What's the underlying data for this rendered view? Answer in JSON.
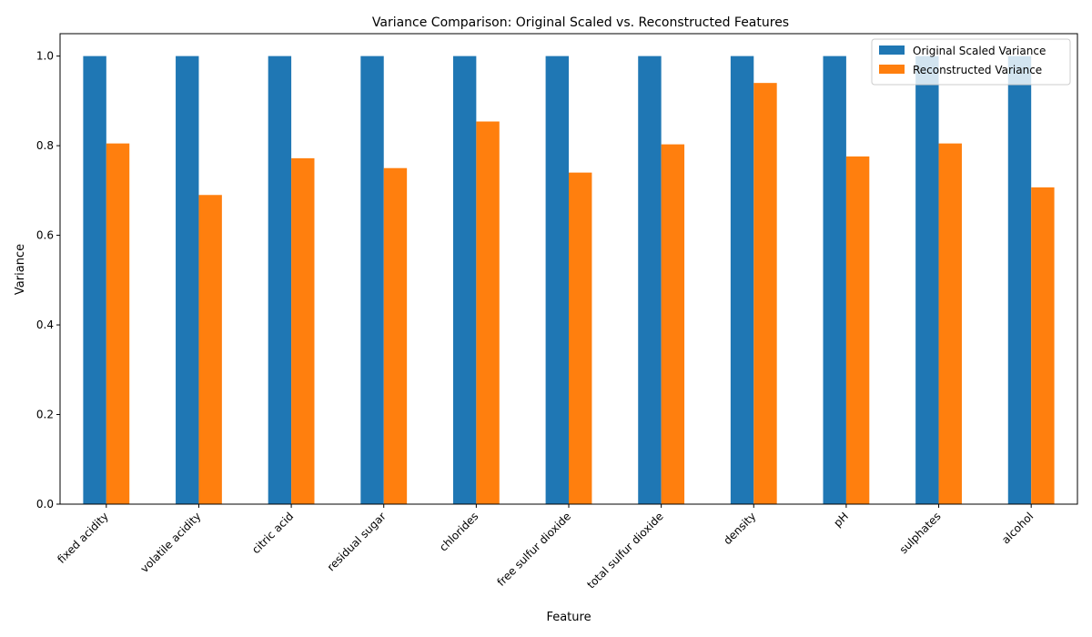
{
  "chart_data": {
    "type": "bar",
    "title": "Variance Comparison: Original Scaled vs. Reconstructed Features",
    "xlabel": "Feature",
    "ylabel": "Variance",
    "ylim": [
      0,
      1.05
    ],
    "yticks": [
      "0.0",
      "0.2",
      "0.4",
      "0.6",
      "0.8",
      "1.0"
    ],
    "categories": [
      "fixed acidity",
      "volatile acidity",
      "citric acid",
      "residual sugar",
      "chlorides",
      "free sulfur dioxide",
      "total sulfur dioxide",
      "density",
      "pH",
      "sulphates",
      "alcohol"
    ],
    "series": [
      {
        "name": "Original Scaled Variance",
        "color": "#1f77b4",
        "values": [
          1.0,
          1.0,
          1.0,
          1.0,
          1.0,
          1.0,
          1.0,
          1.0,
          1.0,
          1.0,
          1.0
        ]
      },
      {
        "name": "Reconstructed Variance",
        "color": "#ff7f0e",
        "values": [
          0.805,
          0.69,
          0.772,
          0.75,
          0.854,
          0.74,
          0.803,
          0.94,
          0.776,
          0.805,
          0.707
        ]
      }
    ],
    "legend": "top-right",
    "grid": false
  }
}
